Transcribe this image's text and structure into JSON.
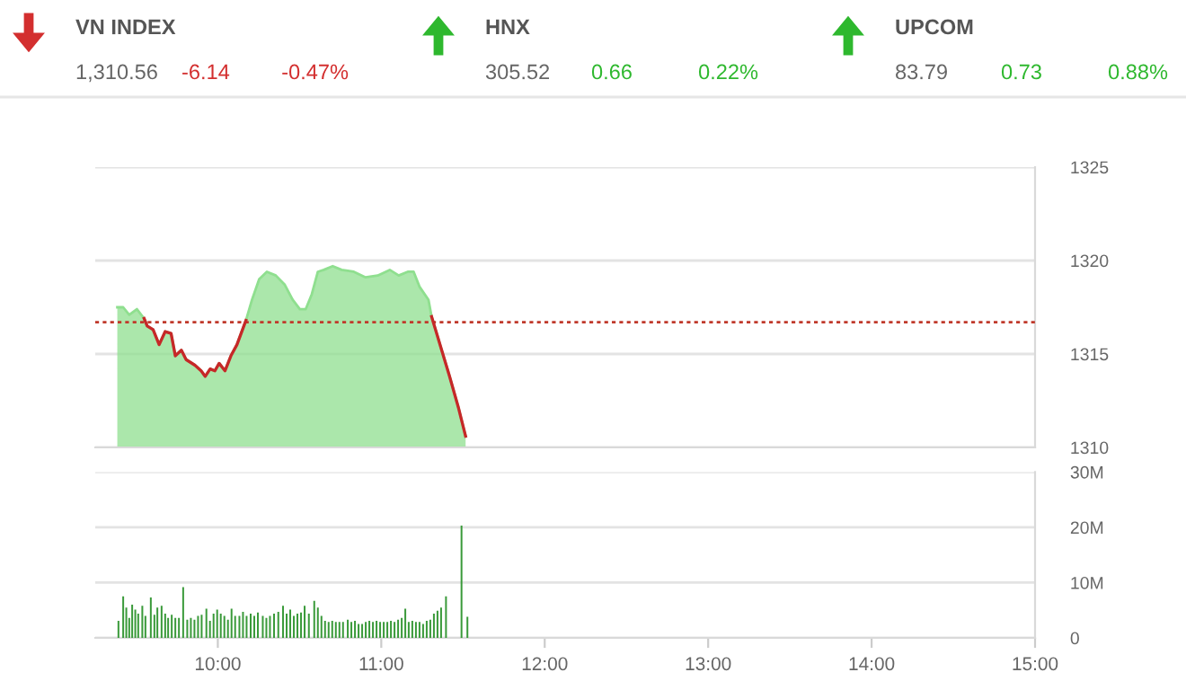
{
  "chart_data": [
    {
      "type": "other",
      "categories": [
        "VN INDEX",
        "HNX",
        "UPCOM"
      ],
      "values": [
        -6.14,
        0.66,
        0.73
      ],
      "value_labels": [
        "-6.14",
        "0.66",
        "0.73"
      ],
      "colors": [
        "#d32f2f",
        "#2eb82e",
        "#2eb82e"
      ],
      "annotations": [
        "1,310.56",
        "-0.47%",
        "305.52",
        "0.22%",
        "83.79",
        "0.88%"
      ]
    },
    {
      "type": "area",
      "xlim": [
        9.25,
        15
      ],
      "ylim": [
        1310,
        1325
      ],
      "yticks": [
        1310,
        1315,
        1320,
        1325
      ],
      "grid": "y",
      "tick_labels": "y",
      "ref_lines": [
        {
          "axis": "y",
          "value": 1316.7,
          "color": "#c0392b",
          "line_style": "dotted"
        }
      ],
      "x": [
        9.385,
        9.421,
        9.458,
        9.505,
        9.549,
        9.568,
        9.604,
        9.641,
        9.678,
        9.714,
        9.74,
        9.777,
        9.806,
        9.86,
        9.898,
        9.923,
        9.953,
        9.982,
        10.008,
        10.044,
        10.08,
        10.117,
        10.172,
        10.209,
        10.253,
        10.3,
        10.355,
        10.41,
        10.458,
        10.502,
        10.538,
        10.575,
        10.612,
        10.648,
        10.703,
        10.758,
        10.832,
        10.904,
        10.978,
        11.052,
        11.107,
        11.162,
        11.198,
        11.234,
        11.289,
        11.308,
        11.363,
        11.418,
        11.473,
        11.516
      ],
      "series": [
        {
          "type": "area",
          "color": "#8fdf8f",
          "values": [
            1317.5,
            1317.5,
            1317.1,
            1317.4,
            1316.9,
            1316.5,
            1316.3,
            1315.5,
            1316.2,
            1316.1,
            1314.9,
            1315.2,
            1314.7,
            1314.4,
            1314.1,
            1313.8,
            1314.2,
            1314.1,
            1314.5,
            1314.1,
            1314.9,
            1315.5,
            1316.8,
            1317.9,
            1319.0,
            1319.4,
            1319.2,
            1318.7,
            1317.9,
            1317.4,
            1317.4,
            1318.2,
            1319.4,
            1319.5,
            1319.7,
            1319.5,
            1319.4,
            1319.1,
            1319.2,
            1319.5,
            1319.2,
            1319.4,
            1319.4,
            1318.6,
            1317.9,
            1317.0,
            1315.4,
            1313.8,
            1312.1,
            1310.6
          ]
        },
        {
          "type": "line",
          "color": "#c62828",
          "values": [
            null,
            null,
            null,
            null,
            1316.9,
            1316.5,
            1316.3,
            1315.5,
            1316.2,
            1316.1,
            1314.9,
            1315.2,
            1314.7,
            1314.4,
            1314.1,
            1313.8,
            1314.2,
            1314.1,
            1314.5,
            1314.1,
            1314.9,
            1315.5,
            1316.8,
            null,
            null,
            null,
            null,
            null,
            null,
            null,
            null,
            null,
            null,
            null,
            null,
            null,
            null,
            null,
            null,
            null,
            null,
            null,
            null,
            null,
            null,
            1317.0,
            1315.4,
            1313.8,
            1312.1,
            1310.6
          ]
        }
      ]
    },
    {
      "type": "bar",
      "xlim": [
        9.25,
        15
      ],
      "ylim": [
        0,
        30
      ],
      "grid": "y",
      "xticks": [
        {
          "value": 10,
          "label": "10:00"
        },
        {
          "value": 11,
          "label": "11:00"
        },
        {
          "value": 12,
          "label": "12:00"
        },
        {
          "value": 13,
          "label": "13:00"
        },
        {
          "value": 14,
          "label": "14:00"
        },
        {
          "value": 15,
          "label": "15:00"
        }
      ],
      "yticks": [
        0,
        {
          "value": 10,
          "label": "10M"
        },
        {
          "value": 20,
          "label": "20M"
        },
        {
          "value": 30,
          "label": "30M"
        }
      ],
      "x": [
        9.392,
        9.421,
        9.44,
        9.458,
        9.476,
        9.495,
        9.513,
        9.538,
        9.557,
        9.59,
        9.612,
        9.63,
        9.656,
        9.678,
        9.696,
        9.718,
        9.74,
        9.762,
        9.788,
        9.813,
        9.835,
        9.857,
        9.879,
        9.901,
        9.93,
        9.952,
        9.974,
        9.996,
        10.018,
        10.04,
        10.062,
        10.084,
        10.106,
        10.132,
        10.154,
        10.176,
        10.201,
        10.223,
        10.245,
        10.275,
        10.297,
        10.319,
        10.344,
        10.37,
        10.399,
        10.421,
        10.443,
        10.465,
        10.487,
        10.509,
        10.531,
        10.557,
        10.59,
        10.612,
        10.634,
        10.656,
        10.678,
        10.7,
        10.722,
        10.744,
        10.766,
        10.795,
        10.817,
        10.839,
        10.861,
        10.883,
        10.905,
        10.927,
        10.949,
        10.971,
        10.993,
        11.015,
        11.037,
        11.059,
        11.081,
        11.103,
        11.125,
        11.147,
        11.168,
        11.19,
        11.212,
        11.234,
        11.256,
        11.278,
        11.3,
        11.322,
        11.344,
        11.366,
        11.396,
        11.491,
        11.527
      ],
      "series": [
        {
          "color": "#3a9a3a",
          "values": [
            3.1,
            7.5,
            5.5,
            3.6,
            6.0,
            5.1,
            4.4,
            5.8,
            4.0,
            7.3,
            4.2,
            5.5,
            5.8,
            4.4,
            3.6,
            4.2,
            3.6,
            3.6,
            9.2,
            3.3,
            3.6,
            3.3,
            4.0,
            4.2,
            5.3,
            3.1,
            4.4,
            5.1,
            4.4,
            4.0,
            3.3,
            5.3,
            4.0,
            4.0,
            4.7,
            4.0,
            4.4,
            4.0,
            4.6,
            4.0,
            3.6,
            4.0,
            4.4,
            4.7,
            5.8,
            4.4,
            5.1,
            4.0,
            4.4,
            4.6,
            5.8,
            4.4,
            6.7,
            5.5,
            4.0,
            3.1,
            2.9,
            3.1,
            2.9,
            2.9,
            2.9,
            3.3,
            2.9,
            3.1,
            2.5,
            2.5,
            2.9,
            3.1,
            2.9,
            3.1,
            2.9,
            2.9,
            2.9,
            3.1,
            2.9,
            3.3,
            3.6,
            5.3,
            2.9,
            3.1,
            2.9,
            2.9,
            2.5,
            3.1,
            3.3,
            4.4,
            4.9,
            5.5,
            7.5,
            20.3,
            3.8
          ]
        }
      ]
    }
  ]
}
